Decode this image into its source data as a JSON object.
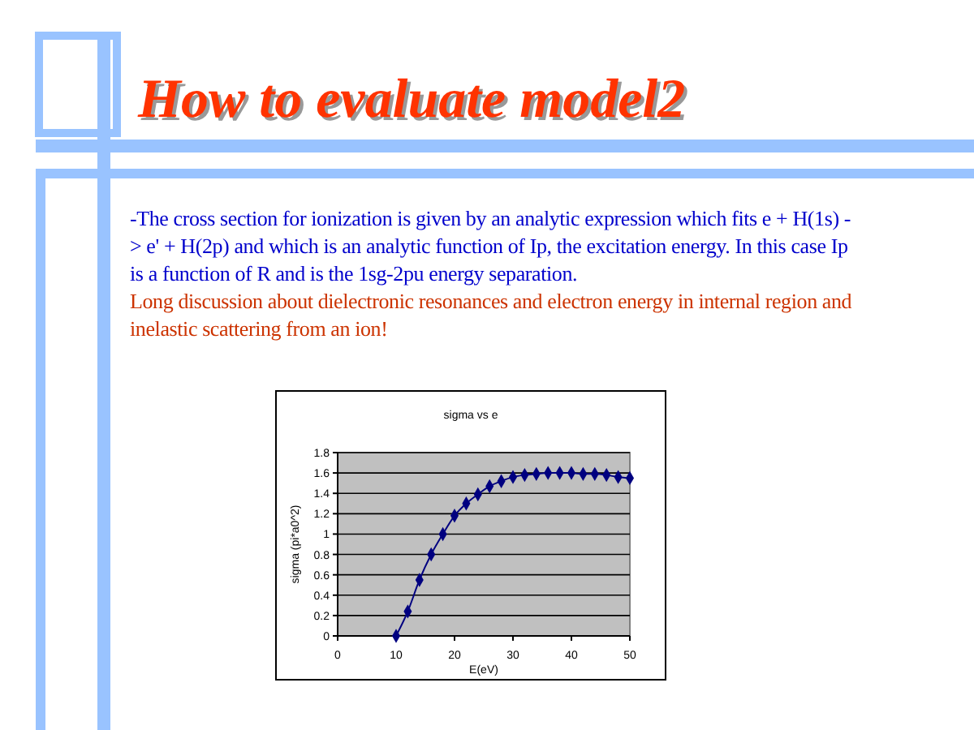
{
  "chart_data": {
    "type": "line",
    "title": "How to evaluate model2",
    "subtitle": "sigma vs e",
    "annotations": [
      "-The cross section for ionization is given by an analytic expression which fits e + H(1s) -> e' + H(2p) and which is an analytic function of Ip, the excitation energy. In this case Ip is a function of R and is the 1sg-2pu energy separation.",
      "Long discussion about dielectronic resonances and electron energy in internal region and inelastic scattering from an ion!"
    ],
    "xlabel": "E(eV)",
    "ylabel": "sigma (pi*a0^2)",
    "x": [
      10,
      12,
      14,
      16,
      18,
      20,
      22,
      24,
      26,
      28,
      30,
      32,
      34,
      36,
      38,
      40,
      42,
      44,
      46,
      48,
      50
    ],
    "series": [
      {
        "color": "#000080",
        "values": [
          0,
          0.24,
          0.55,
          0.8,
          1.0,
          1.18,
          1.3,
          1.39,
          1.47,
          1.52,
          1.56,
          1.58,
          1.59,
          1.6,
          1.6,
          1.6,
          1.59,
          1.59,
          1.58,
          1.56,
          1.55
        ]
      }
    ],
    "xlim": [
      0,
      50
    ],
    "xticks": [
      0,
      10,
      20,
      30,
      40,
      50
    ],
    "ylim": [
      0,
      1.8
    ],
    "yticks": [
      0,
      0.2,
      0.4,
      0.6,
      0.8,
      1,
      1.2,
      1.4,
      1.6,
      1.8
    ],
    "grid": "y",
    "marker": "diamond",
    "line_style": "solid"
  }
}
